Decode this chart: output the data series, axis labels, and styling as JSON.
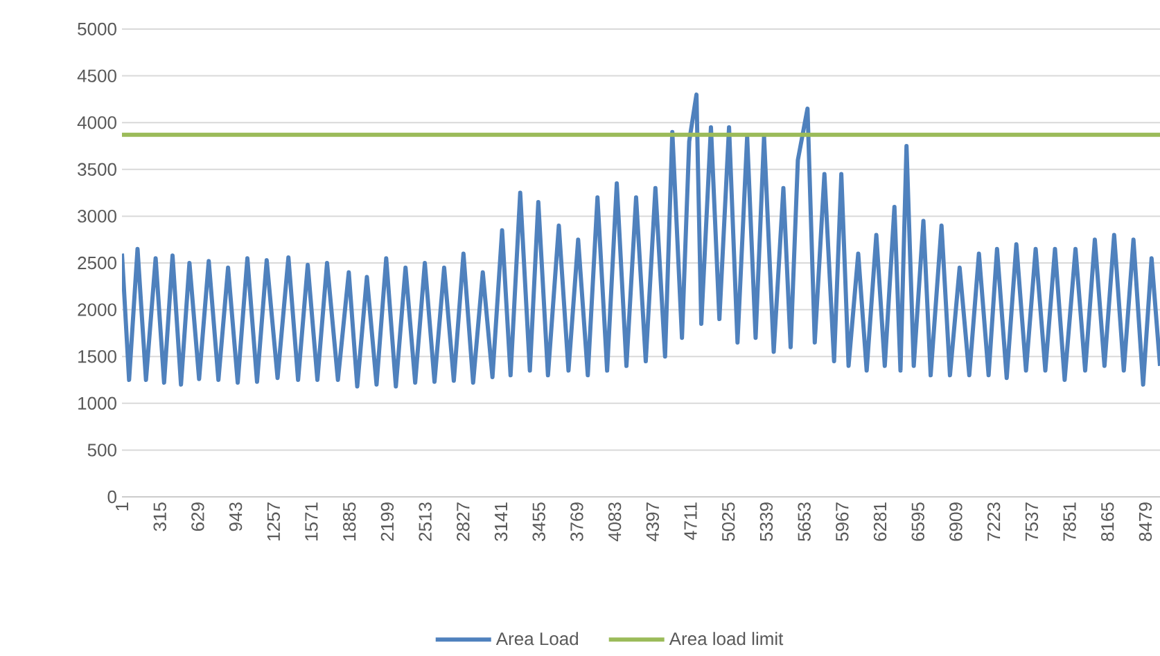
{
  "chart_data": {
    "type": "line",
    "xlim": [
      1,
      8600
    ],
    "ylim": [
      0,
      5000
    ],
    "xticks": [
      1,
      315,
      629,
      943,
      1257,
      1571,
      1885,
      2199,
      2513,
      2827,
      3141,
      3455,
      3769,
      4083,
      4397,
      4711,
      5025,
      5339,
      5653,
      5967,
      6281,
      6595,
      6909,
      7223,
      7537,
      7851,
      8165,
      8479
    ],
    "yticks": [
      0,
      500,
      1000,
      1500,
      2000,
      2500,
      3000,
      3500,
      4000,
      4500,
      5000
    ],
    "grid": "y",
    "legend": "bottom",
    "series": [
      {
        "name": "Area Load",
        "color": "#4f81bd",
        "x": [
          1,
          60,
          130,
          200,
          280,
          350,
          420,
          490,
          560,
          640,
          720,
          800,
          880,
          960,
          1040,
          1120,
          1200,
          1290,
          1380,
          1460,
          1540,
          1620,
          1700,
          1790,
          1880,
          1950,
          2030,
          2110,
          2190,
          2270,
          2350,
          2430,
          2510,
          2590,
          2670,
          2750,
          2830,
          2910,
          2990,
          3070,
          3150,
          3220,
          3300,
          3380,
          3450,
          3530,
          3620,
          3700,
          3780,
          3860,
          3940,
          4020,
          4100,
          4180,
          4260,
          4340,
          4420,
          4500,
          4560,
          4640,
          4700,
          4760,
          4800,
          4880,
          4950,
          5030,
          5100,
          5180,
          5250,
          5320,
          5400,
          5480,
          5540,
          5600,
          5680,
          5740,
          5820,
          5900,
          5960,
          6020,
          6100,
          6170,
          6250,
          6320,
          6400,
          6450,
          6500,
          6560,
          6640,
          6700,
          6790,
          6860,
          6940,
          7020,
          7100,
          7180,
          7250,
          7330,
          7410,
          7490,
          7570,
          7650,
          7730,
          7810,
          7900,
          7980,
          8060,
          8140,
          8220,
          8300,
          8380,
          8460,
          8530,
          8600
        ],
        "values": [
          2600,
          1250,
          2650,
          1250,
          2550,
          1220,
          2580,
          1200,
          2500,
          1260,
          2520,
          1250,
          2450,
          1220,
          2550,
          1230,
          2530,
          1270,
          2560,
          1250,
          2480,
          1250,
          2500,
          1250,
          2400,
          1180,
          2350,
          1200,
          2550,
          1180,
          2450,
          1220,
          2500,
          1230,
          2450,
          1240,
          2600,
          1220,
          2400,
          1280,
          2850,
          1300,
          3250,
          1350,
          3150,
          1300,
          2900,
          1350,
          2750,
          1300,
          3200,
          1350,
          3350,
          1400,
          3200,
          1450,
          3300,
          1500,
          3900,
          1700,
          3800,
          4300,
          1850,
          3950,
          1900,
          3950,
          1650,
          3850,
          1700,
          3850,
          1550,
          3300,
          1600,
          3600,
          4150,
          1650,
          3450,
          1450,
          3450,
          1400,
          2600,
          1350,
          2800,
          1400,
          3100,
          1350,
          3750,
          1400,
          2950,
          1300,
          2900,
          1300,
          2450,
          1300,
          2600,
          1300,
          2650,
          1270,
          2700,
          1350,
          2650,
          1350,
          2650,
          1250,
          2650,
          1350,
          2750,
          1400,
          2800,
          1350,
          2750,
          1200,
          2550,
          1400
        ]
      },
      {
        "name": "Area load limit",
        "color": "#9bbb59",
        "x": [
          1,
          8600
        ],
        "values": [
          3870,
          3870
        ]
      }
    ]
  }
}
